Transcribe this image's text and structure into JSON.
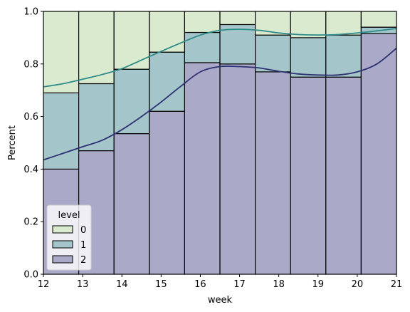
{
  "chart_data": {
    "type": "bar",
    "stacked": true,
    "normalized": true,
    "x_edges": [
      12,
      12.9,
      13.8,
      14.7,
      15.6,
      16.5,
      17.4,
      18.3,
      19.2,
      20.1,
      21
    ],
    "series": [
      {
        "name": "2",
        "color": "#aaa9c8",
        "values": [
          0.4,
          0.47,
          0.535,
          0.62,
          0.805,
          0.8,
          0.77,
          0.75,
          0.75,
          0.915
        ]
      },
      {
        "name": "1",
        "color": "#a4c6cb",
        "values": [
          0.29,
          0.255,
          0.245,
          0.225,
          0.115,
          0.15,
          0.14,
          0.15,
          0.16,
          0.025
        ]
      },
      {
        "name": "0",
        "color": "#d9eacf",
        "values": [
          0.31,
          0.275,
          0.22,
          0.155,
          0.08,
          0.05,
          0.09,
          0.1,
          0.09,
          0.06
        ]
      }
    ],
    "kde_lines": [
      {
        "level": "2",
        "color": "#2c3172",
        "points": [
          [
            12,
            0.435
          ],
          [
            12.5,
            0.46
          ],
          [
            13,
            0.485
          ],
          [
            13.5,
            0.51
          ],
          [
            14,
            0.55
          ],
          [
            14.5,
            0.6
          ],
          [
            15,
            0.655
          ],
          [
            15.5,
            0.715
          ],
          [
            16,
            0.77
          ],
          [
            16.5,
            0.79
          ],
          [
            17,
            0.79
          ],
          [
            17.5,
            0.785
          ],
          [
            18,
            0.772
          ],
          [
            18.5,
            0.762
          ],
          [
            19,
            0.758
          ],
          [
            19.5,
            0.758
          ],
          [
            20,
            0.77
          ],
          [
            20.5,
            0.8
          ],
          [
            21,
            0.86
          ]
        ]
      },
      {
        "level": "1",
        "color": "#2e8b88",
        "points": [
          [
            12,
            0.713
          ],
          [
            12.5,
            0.725
          ],
          [
            13,
            0.742
          ],
          [
            13.5,
            0.76
          ],
          [
            14,
            0.782
          ],
          [
            14.5,
            0.815
          ],
          [
            15,
            0.848
          ],
          [
            15.5,
            0.88
          ],
          [
            16,
            0.91
          ],
          [
            16.5,
            0.928
          ],
          [
            17,
            0.932
          ],
          [
            17.5,
            0.928
          ],
          [
            18,
            0.918
          ],
          [
            18.5,
            0.912
          ],
          [
            19,
            0.91
          ],
          [
            19.5,
            0.912
          ],
          [
            20,
            0.918
          ],
          [
            20.5,
            0.926
          ],
          [
            21,
            0.935
          ]
        ]
      }
    ],
    "xlabel": "week",
    "ylabel": "Percent",
    "xlim": [
      12,
      21
    ],
    "ylim": [
      0,
      1
    ],
    "xticks": [
      12,
      13,
      14,
      15,
      16,
      17,
      18,
      19,
      20,
      21
    ],
    "yticks": [
      "0.0",
      "0.2",
      "0.4",
      "0.6",
      "0.8",
      "1.0"
    ],
    "legend": {
      "title": "level",
      "placement": "lower-left",
      "entries": [
        {
          "label": "0",
          "color": "#d9eacf"
        },
        {
          "label": "1",
          "color": "#a4c6cb"
        },
        {
          "label": "2",
          "color": "#aaa9c8"
        }
      ]
    },
    "grid": false
  }
}
